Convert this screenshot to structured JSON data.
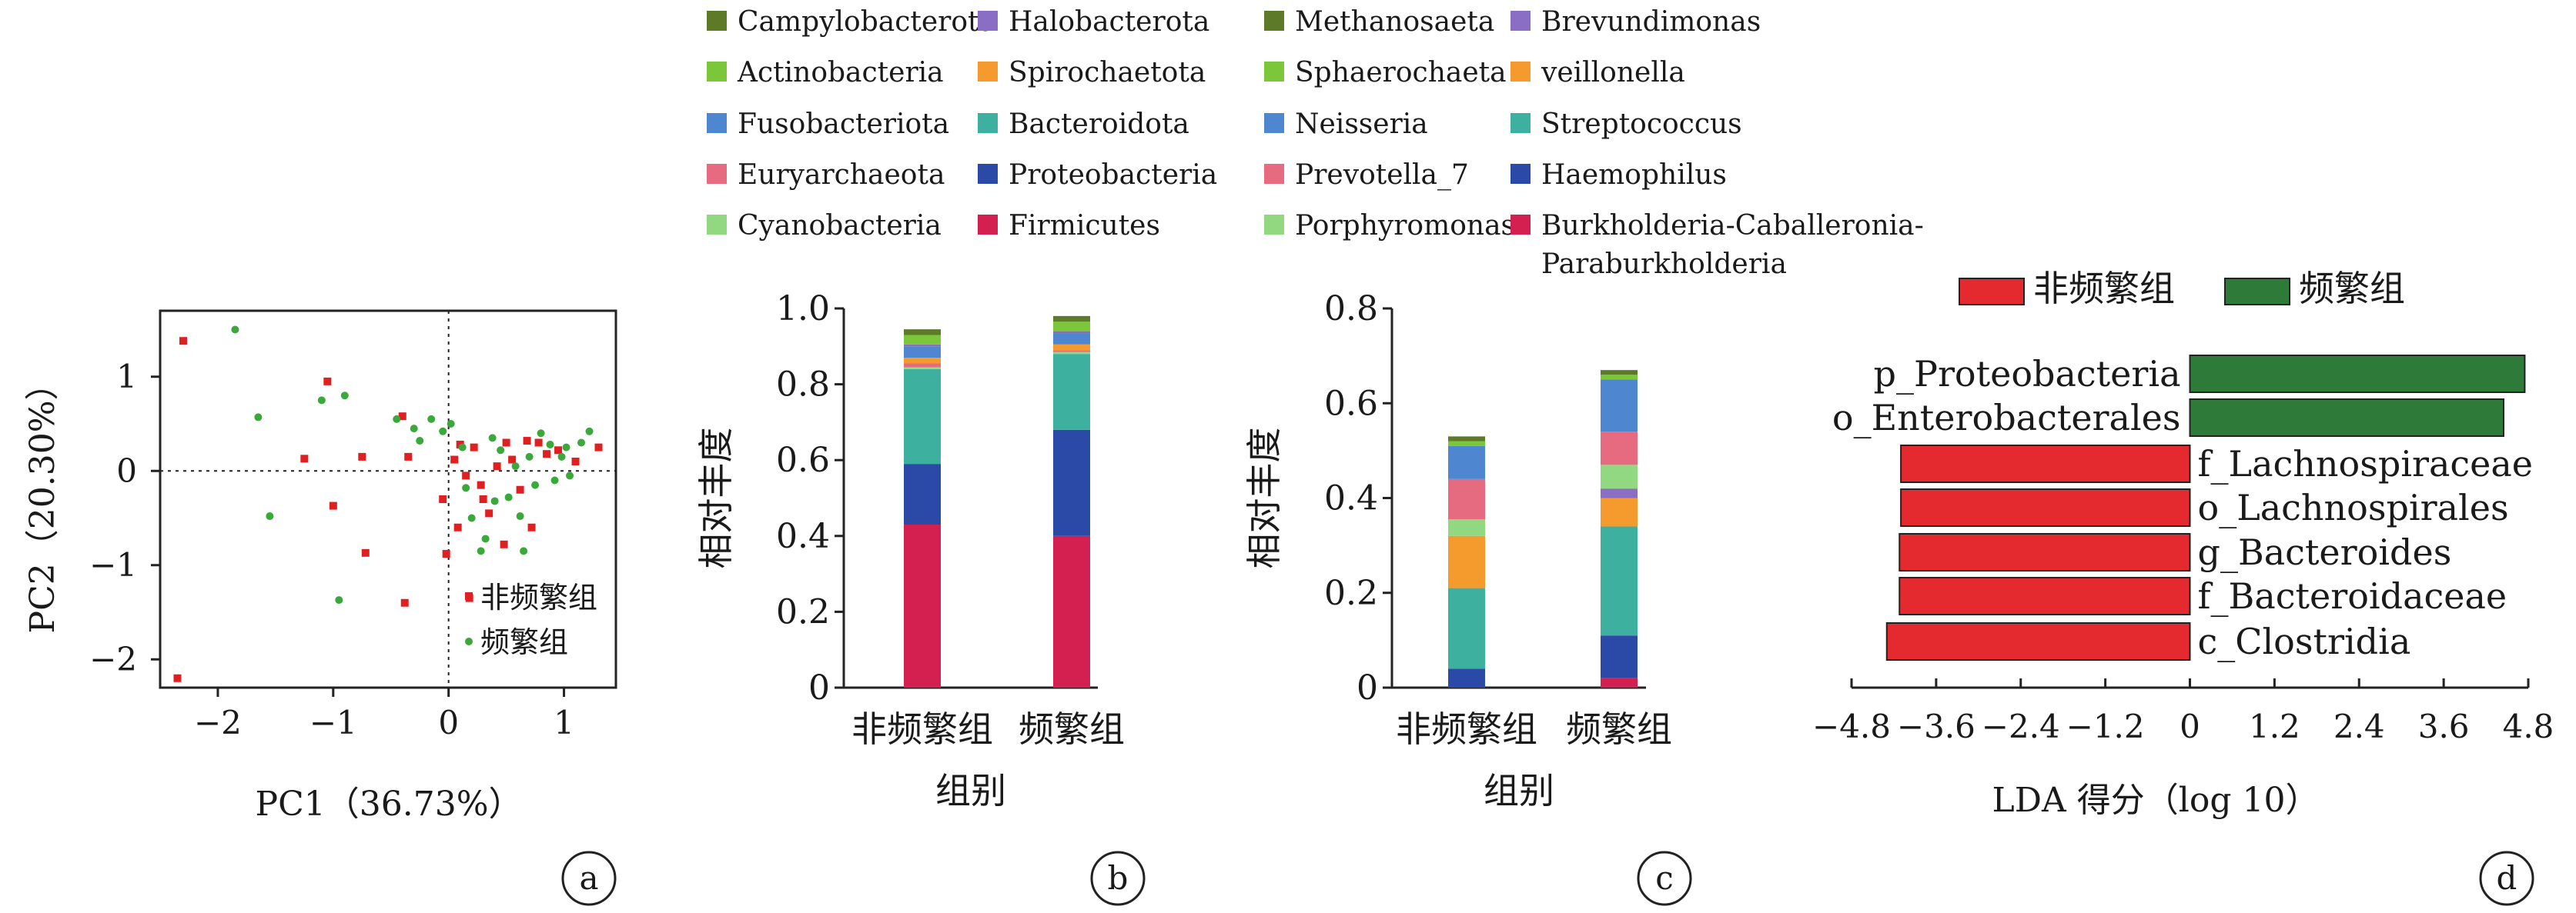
{
  "legend": {
    "col1": [
      {
        "label": "Campylobacterota",
        "color": "#5d7a28"
      },
      {
        "label": "Actinobacteria",
        "color": "#7cc63a"
      },
      {
        "label": "Fusobacteriota",
        "color": "#4f86d0"
      },
      {
        "label": "Euryarchaeota",
        "color": "#e66a80"
      },
      {
        "label": "Cyanobacteria",
        "color": "#92d880"
      }
    ],
    "col2": [
      {
        "label": "Halobacterota",
        "color": "#8a6ec4"
      },
      {
        "label": "Spirochaetota",
        "color": "#f59a2c"
      },
      {
        "label": "Bacteroidota",
        "color": "#3db0a0"
      },
      {
        "label": "Proteobacteria",
        "color": "#2b4aa8"
      },
      {
        "label": "Firmicutes",
        "color": "#d42050"
      }
    ],
    "col3": [
      {
        "label": "Methanosaeta",
        "color": "#5d7a28"
      },
      {
        "label": "Sphaerochaeta",
        "color": "#7cc63a"
      },
      {
        "label": "Neisseria",
        "color": "#4f86d0"
      },
      {
        "label": "Prevotella_7",
        "color": "#e66a80"
      },
      {
        "label": "Porphyromonas",
        "color": "#92d880"
      }
    ],
    "col4": [
      {
        "label": "Brevundimonas",
        "color": "#8a6ec4"
      },
      {
        "label": "veillonella",
        "color": "#f59a2c"
      },
      {
        "label": "Streptococcus",
        "color": "#3db0a0"
      },
      {
        "label": "Haemophilus",
        "color": "#2b4aa8"
      },
      {
        "label": "Burkholderia-Caballeronia-",
        "label2": "Paraburkholderia",
        "color": "#d42050"
      }
    ]
  },
  "chart_data": [
    {
      "panel": "a",
      "type": "scatter",
      "xlabel": "PC1（36.73%）",
      "ylabel": "PC2（20.30%）",
      "xlim": [
        -2.5,
        1.45
      ],
      "ylim": [
        -2.3,
        1.7
      ],
      "xticks": [
        {
          "v": -2,
          "t": "−2"
        },
        {
          "v": -1,
          "t": "−1"
        },
        {
          "v": 0,
          "t": "0"
        },
        {
          "v": 1,
          "t": "1"
        }
      ],
      "yticks": [
        {
          "v": 1,
          "t": "1"
        },
        {
          "v": 0,
          "t": "0"
        },
        {
          "v": -1,
          "t": "−1"
        },
        {
          "v": -2,
          "t": "−2"
        }
      ],
      "series": [
        {
          "name": "非频繁组",
          "color": "#e02020",
          "marker": "square",
          "points": [
            [
              -2.3,
              1.38
            ],
            [
              -2.35,
              -2.2
            ],
            [
              -1.25,
              0.13
            ],
            [
              -1.05,
              0.95
            ],
            [
              -1.0,
              -0.37
            ],
            [
              -0.75,
              0.15
            ],
            [
              -0.72,
              -0.87
            ],
            [
              -0.4,
              0.58
            ],
            [
              -0.38,
              -1.4
            ],
            [
              -0.35,
              0.15
            ],
            [
              -0.05,
              -0.3
            ],
            [
              -0.02,
              -0.88
            ],
            [
              0.08,
              -0.6
            ],
            [
              0.1,
              0.28
            ],
            [
              0.15,
              -0.05
            ],
            [
              0.18,
              -1.35
            ],
            [
              0.22,
              0.25
            ],
            [
              0.28,
              -0.15
            ],
            [
              0.35,
              -0.45
            ],
            [
              0.42,
              0.05
            ],
            [
              0.48,
              -0.78
            ],
            [
              0.5,
              0.3
            ],
            [
              0.55,
              0.12
            ],
            [
              0.62,
              -0.2
            ],
            [
              0.68,
              0.32
            ],
            [
              0.72,
              -0.6
            ],
            [
              0.78,
              0.3
            ],
            [
              0.85,
              0.18
            ],
            [
              0.95,
              0.22
            ],
            [
              1.1,
              0.1
            ],
            [
              1.3,
              0.25
            ],
            [
              0.05,
              0.12
            ],
            [
              0.3,
              -0.3
            ]
          ]
        },
        {
          "name": "频繁组",
          "color": "#3aa83a",
          "marker": "circle",
          "points": [
            [
              -1.85,
              1.5
            ],
            [
              -1.65,
              0.57
            ],
            [
              -1.55,
              -0.48
            ],
            [
              -1.1,
              0.75
            ],
            [
              -0.9,
              0.8
            ],
            [
              -0.95,
              -1.37
            ],
            [
              -0.45,
              0.55
            ],
            [
              -0.3,
              0.45
            ],
            [
              -0.25,
              0.32
            ],
            [
              -0.15,
              0.55
            ],
            [
              -0.05,
              0.42
            ],
            [
              0.02,
              0.5
            ],
            [
              0.12,
              0.25
            ],
            [
              0.2,
              -0.5
            ],
            [
              0.28,
              -0.85
            ],
            [
              0.32,
              -0.72
            ],
            [
              0.38,
              0.35
            ],
            [
              0.45,
              0.22
            ],
            [
              0.52,
              -0.28
            ],
            [
              0.58,
              0.05
            ],
            [
              0.62,
              -0.48
            ],
            [
              0.7,
              0.15
            ],
            [
              0.75,
              -0.15
            ],
            [
              0.8,
              0.4
            ],
            [
              0.88,
              0.28
            ],
            [
              0.92,
              -0.1
            ],
            [
              0.98,
              0.15
            ],
            [
              1.02,
              0.25
            ],
            [
              1.05,
              -0.05
            ],
            [
              1.15,
              0.3
            ],
            [
              1.22,
              0.42
            ],
            [
              0.4,
              -0.32
            ],
            [
              0.65,
              -0.85
            ],
            [
              0.15,
              -0.18
            ]
          ]
        }
      ],
      "legend": [
        "非频繁组",
        "频繁组"
      ],
      "tag": "a"
    },
    {
      "panel": "b",
      "type": "bar",
      "stacked": true,
      "xlabel": "组别",
      "ylabel": "相对丰度",
      "ylim": [
        0,
        1.0
      ],
      "yticks": [
        "0",
        "0.2",
        "0.4",
        "0.6",
        "0.8",
        "1.0"
      ],
      "categories": [
        "非频繁组",
        "频繁组"
      ],
      "series": [
        {
          "name": "Firmicutes",
          "color": "#d42050",
          "values": [
            0.43,
            0.4
          ]
        },
        {
          "name": "Proteobacteria",
          "color": "#2b4aa8",
          "values": [
            0.16,
            0.28
          ]
        },
        {
          "name": "Bacteroidota",
          "color": "#3db0a0",
          "values": [
            0.25,
            0.2
          ]
        },
        {
          "name": "Cyanobacteria",
          "color": "#92d880",
          "values": [
            0.005,
            0.005
          ]
        },
        {
          "name": "Euryarchaeota",
          "color": "#e66a80",
          "values": [
            0.01,
            0.005
          ]
        },
        {
          "name": "Spirochaetota",
          "color": "#f59a2c",
          "values": [
            0.015,
            0.015
          ]
        },
        {
          "name": "Fusobacteriota",
          "color": "#4f86d0",
          "values": [
            0.03,
            0.03
          ]
        },
        {
          "name": "Halobacterota",
          "color": "#8a6ec4",
          "values": [
            0.005,
            0.005
          ]
        },
        {
          "name": "Actinobacteria",
          "color": "#7cc63a",
          "values": [
            0.025,
            0.025
          ]
        },
        {
          "name": "Campylobacterota",
          "color": "#5d7a28",
          "values": [
            0.015,
            0.015
          ]
        }
      ],
      "tag": "b"
    },
    {
      "panel": "c",
      "type": "bar",
      "stacked": true,
      "xlabel": "组别",
      "ylabel": "相对丰度",
      "ylim": [
        0,
        0.8
      ],
      "yticks": [
        "0",
        "0.2",
        "0.4",
        "0.6",
        "0.8"
      ],
      "categories": [
        "非频繁组",
        "频繁组"
      ],
      "series": [
        {
          "name": "Burkholderia-Caballeronia-Paraburkholderia",
          "color": "#d42050",
          "values": [
            0.0,
            0.02
          ]
        },
        {
          "name": "Haemophilus",
          "color": "#2b4aa8",
          "values": [
            0.04,
            0.09
          ]
        },
        {
          "name": "Streptococcus",
          "color": "#3db0a0",
          "values": [
            0.17,
            0.23
          ]
        },
        {
          "name": "veillonella",
          "color": "#f59a2c",
          "values": [
            0.11,
            0.06
          ]
        },
        {
          "name": "Brevundimonas",
          "color": "#8a6ec4",
          "values": [
            0.0,
            0.02
          ]
        },
        {
          "name": "Porphyromonas",
          "color": "#92d880",
          "values": [
            0.035,
            0.05
          ]
        },
        {
          "name": "Prevotella_7",
          "color": "#e66a80",
          "values": [
            0.085,
            0.07
          ]
        },
        {
          "name": "Neisseria",
          "color": "#4f86d0",
          "values": [
            0.07,
            0.11
          ]
        },
        {
          "name": "Sphaerochaeta",
          "color": "#7cc63a",
          "values": [
            0.01,
            0.01
          ]
        },
        {
          "name": "Methanosaeta",
          "color": "#5d7a28",
          "values": [
            0.01,
            0.01
          ]
        }
      ],
      "tag": "c"
    },
    {
      "panel": "d",
      "type": "bar",
      "orientation": "horizontal",
      "xlabel": "LDA 得分（log 10）",
      "xlim": [
        -4.8,
        4.8
      ],
      "xticks": [
        "−4.8",
        "−3.6",
        "−2.4",
        "−1.2",
        "0",
        "1.2",
        "2.4",
        "3.6",
        "4.8"
      ],
      "legend": [
        {
          "name": "非频繁组",
          "color": "#e42a2e"
        },
        {
          "name": "频繁组",
          "color": "#2e7a38"
        }
      ],
      "bars": [
        {
          "label": "p_Proteobacteria",
          "value": 4.75,
          "group": "频繁组"
        },
        {
          "label": "o_Enterobacterales",
          "value": 4.45,
          "group": "频繁组"
        },
        {
          "label": "f_Lachnospiraceae",
          "value": -4.1,
          "group": "非频繁组"
        },
        {
          "label": "o_Lachnospirales",
          "value": -4.1,
          "group": "非频繁组"
        },
        {
          "label": "g_Bacteroides",
          "value": -4.12,
          "group": "非频繁组"
        },
        {
          "label": "f_Bacteroidaceae",
          "value": -4.12,
          "group": "非频繁组"
        },
        {
          "label": "c_Clostridia",
          "value": -4.3,
          "group": "非频繁组"
        }
      ],
      "tag": "d"
    }
  ]
}
